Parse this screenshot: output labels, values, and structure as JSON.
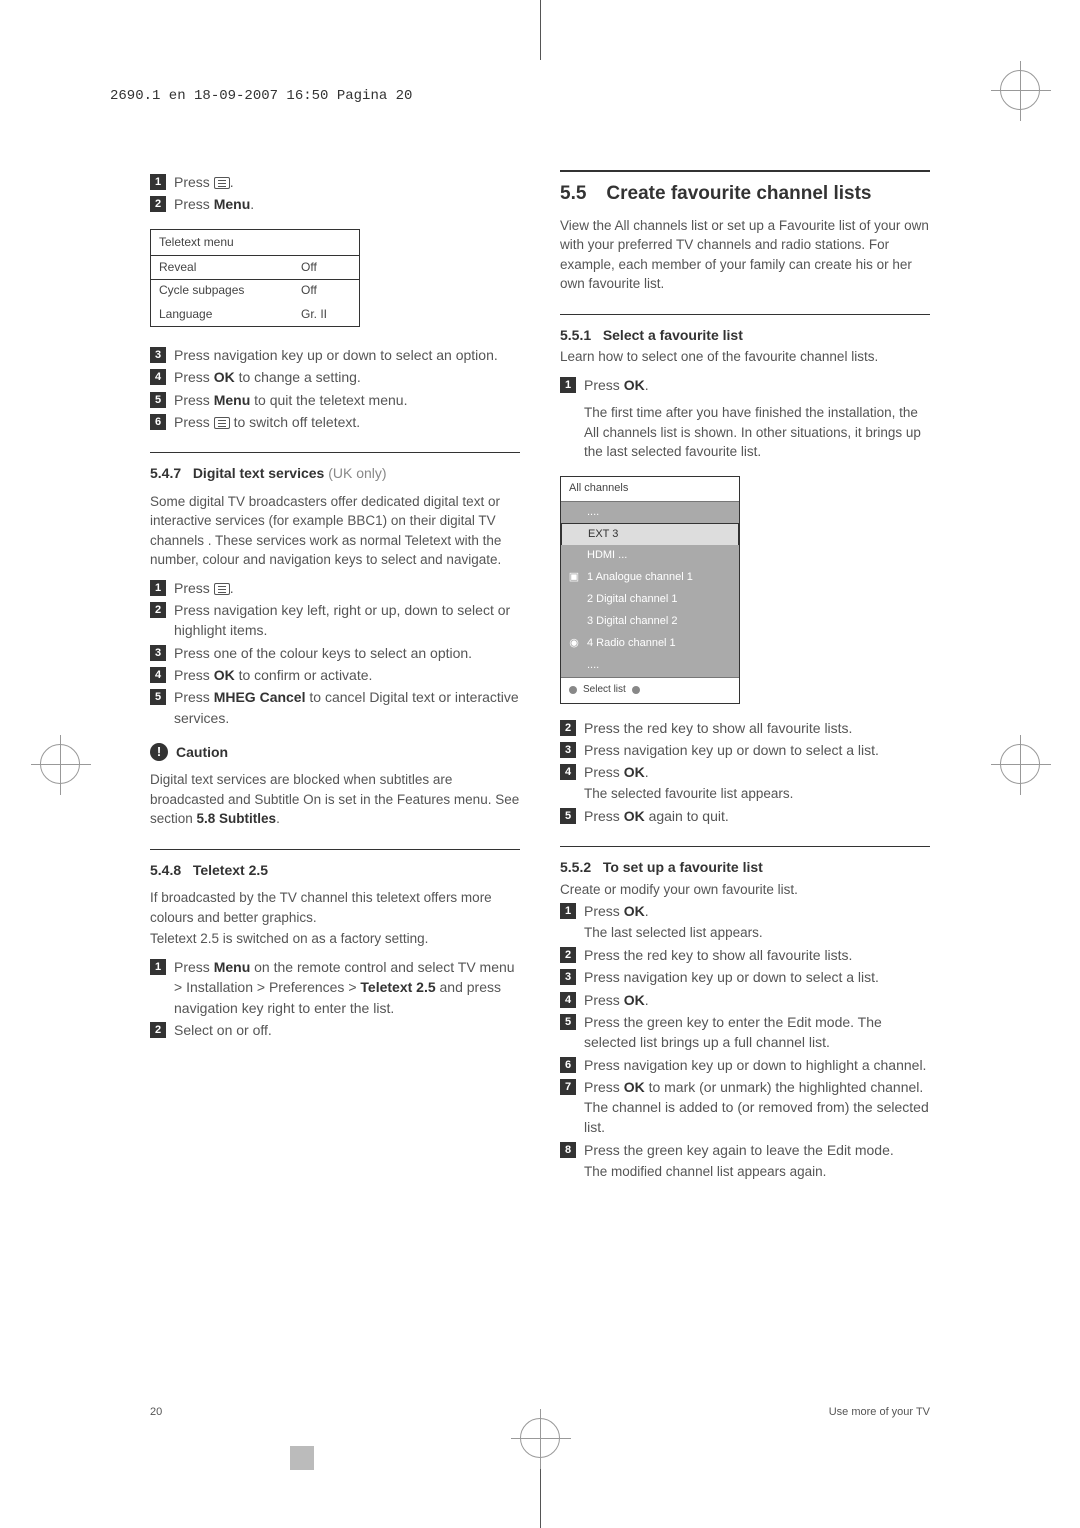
{
  "header": "2690.1 en  18-09-2007  16:50  Pagina 20",
  "left": {
    "steps_top": [
      "Press ",
      "Press "
    ],
    "step_top_tail1": ".",
    "step_top_bold2": "Menu",
    "step_top_tail2": ".",
    "teletext": {
      "title": "Teletext menu",
      "rows": [
        {
          "label": "Reveal",
          "val": "Off",
          "hl": true
        },
        {
          "label": "Cycle subpages",
          "val": "Off"
        },
        {
          "label": "Language",
          "val": "Gr. II"
        }
      ]
    },
    "steps_mid": [
      {
        "n": "3",
        "t": "Press navigation key up or down to select an option."
      },
      {
        "n": "4",
        "pre": "Press ",
        "b": "OK",
        "post": " to change a setting."
      },
      {
        "n": "5",
        "pre": "Press ",
        "b": "Menu",
        "post": " to quit the teletext menu."
      },
      {
        "n": "6",
        "pre": "Press ",
        "icon": true,
        "post": " to switch off teletext."
      }
    ],
    "s547": {
      "num": "5.4.7",
      "title": "Digital text services",
      "suffix": " (UK only)"
    },
    "s547_para": "Some digital TV broadcasters offer dedicated digital text or interactive services (for example BBC1) on their digital TV channels . These services work as normal Teletext with the number, colour and navigation keys to select and navigate.",
    "s547_steps": [
      {
        "n": "1",
        "pre": "Press ",
        "icon": true,
        "post": "."
      },
      {
        "n": "2",
        "t": "Press navigation key left, right or up, down to select or highlight items."
      },
      {
        "n": "3",
        "t": "Press one of the colour keys to select an option."
      },
      {
        "n": "4",
        "pre": "Press ",
        "b": "OK",
        "post": " to confirm or activate."
      },
      {
        "n": "5",
        "pre": "Press ",
        "b": "MHEG Cancel",
        "post": " to cancel Digital text or interactive services."
      }
    ],
    "caution": "Caution",
    "caution_text_pre": "Digital text services are blocked when subtitles are broadcasted and Subtitle On is set in the Features menu. See section ",
    "caution_text_b": "5.8 Subtitles",
    "caution_text_post": ".",
    "s548": {
      "num": "5.4.8",
      "title": "Teletext 2.5"
    },
    "s548_p1": "If broadcasted by the TV channel this teletext offers more colours and better graphics.",
    "s548_p2": "Teletext 2.5 is switched on as a factory setting.",
    "s548_steps": [
      {
        "n": "1",
        "pre": "Press ",
        "b": "Menu",
        "post": " on the remote control and select TV menu > Installation > Preferences > ",
        "b2": "Teletext 2.5",
        "post2": " and press navigation key right to enter the list."
      },
      {
        "n": "2",
        "t": "Select on or off."
      }
    ]
  },
  "right": {
    "h55": {
      "num": "5.5",
      "title": "Create favourite channel lists"
    },
    "h55_para": "View the All channels list or set up a Favourite list of your own with your preferred TV channels and radio stations. For example, each member of your family can create his or her own favourite list.",
    "s551": {
      "num": "5.5.1",
      "title": "Select a favourite list"
    },
    "s551_lead": "Learn how to select one of the favourite channel lists.",
    "s551_s1": {
      "n": "1",
      "pre": "Press ",
      "b": "OK",
      "post": "."
    },
    "s551_s1_body": "The first time after you have finished the installation, the All channels list is shown. In other situations, it brings up the last selected favourite list.",
    "channels": {
      "title": "All channels",
      "rows": [
        {
          "t": "....",
          "dim": true
        },
        {
          "t": "EXT 3",
          "hl": true
        },
        {
          "t": "HDMI ...",
          "dim": true
        },
        {
          "t": "1 Analogue channel 1",
          "ico": "A",
          "dim": true
        },
        {
          "t": "2 Digital channel 1",
          "dim": true
        },
        {
          "t": "3 Digital channel 2",
          "dim": true
        },
        {
          "t": "4 Radio channel 1",
          "ico": "R",
          "dim": true
        },
        {
          "t": "....",
          "dim": true
        }
      ],
      "footer": "Select list"
    },
    "s551_steps2": [
      {
        "n": "2",
        "t": "Press the red key to show all favourite lists."
      },
      {
        "n": "3",
        "t": "Press navigation key up or down to select a list."
      },
      {
        "n": "4",
        "pre": "Press ",
        "b": "OK",
        "post": ".",
        "body": "The selected favourite list appears."
      },
      {
        "n": "5",
        "pre": "Press ",
        "b": "OK",
        "post": " again to quit."
      }
    ],
    "s552": {
      "num": "5.5.2",
      "title": "To set up a favourite list"
    },
    "s552_lead": "Create or modify your own favourite list.",
    "s552_steps": [
      {
        "n": "1",
        "pre": "Press ",
        "b": "OK",
        "post": ".",
        "body": "The last selected list appears."
      },
      {
        "n": "2",
        "t": "Press the red key to show all favourite lists."
      },
      {
        "n": "3",
        "t": "Press navigation key up or down to select a list."
      },
      {
        "n": "4",
        "pre": "Press ",
        "b": "OK",
        "post": "."
      },
      {
        "n": "5",
        "t": "Press the green key to enter the Edit mode. The selected list brings up a full channel list."
      },
      {
        "n": "6",
        "t": "Press navigation key up or down to highlight a channel."
      },
      {
        "n": "7",
        "pre": "Press ",
        "b": "OK",
        "post": " to mark (or unmark) the highlighted channel. The channel is added to (or removed from) the selected list."
      },
      {
        "n": "8",
        "t": "Press the green key again to leave the Edit mode.",
        "body": "The modified channel list appears again."
      }
    ]
  },
  "footer": {
    "page": "20",
    "label": "Use more of your TV"
  }
}
